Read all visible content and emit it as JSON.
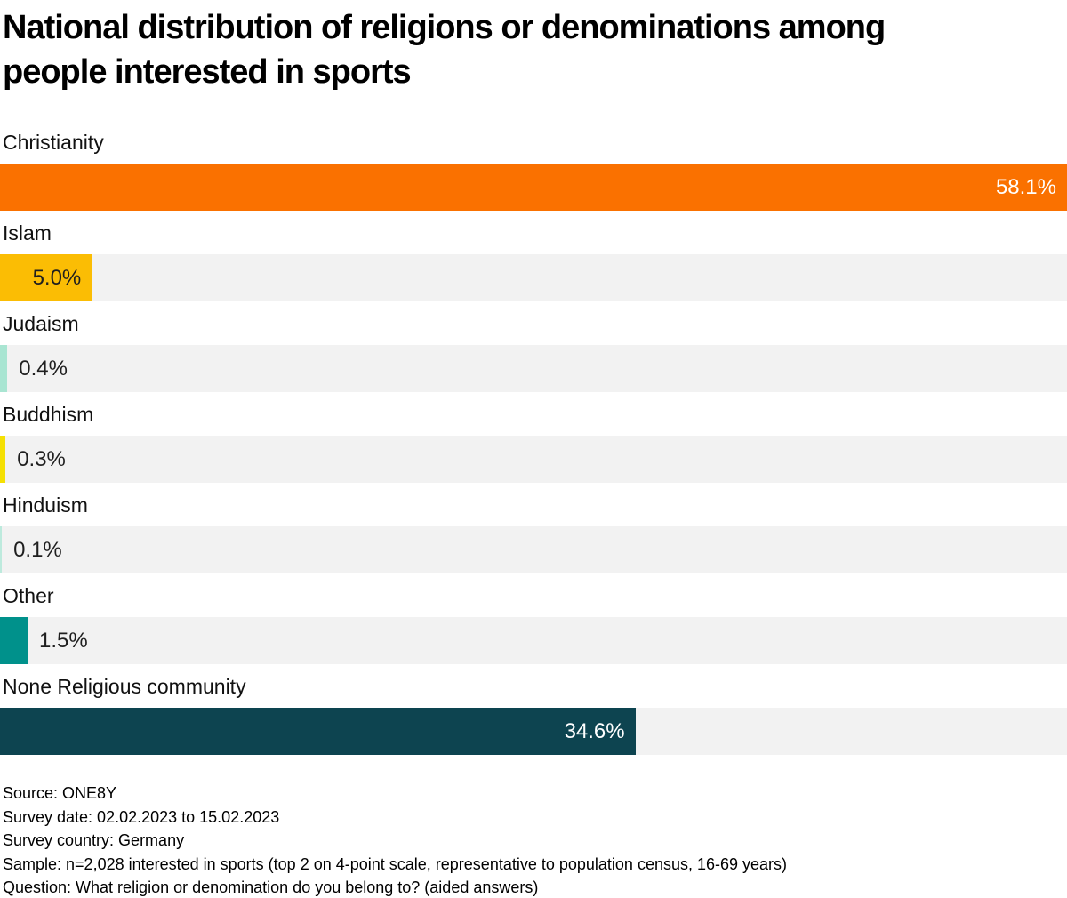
{
  "title_lines": [
    "National distribution of religions or denominations among",
    "people interested in sports"
  ],
  "chart_data": {
    "type": "bar",
    "orientation": "horizontal",
    "title": "National distribution of religions or denominations among people interested in sports",
    "categories": [
      "Christianity",
      "Islam",
      "Judaism",
      "Buddhism",
      "Hinduism",
      "Other",
      "None Religious community"
    ],
    "values": [
      58.1,
      5.0,
      0.4,
      0.3,
      0.1,
      1.5,
      34.6
    ],
    "value_labels": [
      "58.1%",
      "5.0%",
      "0.4%",
      "0.3%",
      "0.1%",
      "1.5%",
      "34.6%"
    ],
    "bar_colors": [
      "#FA7100",
      "#FBBD04",
      "#A9E5D2",
      "#F5E003",
      "#BDEADD",
      "#00918B",
      "#0D4450"
    ],
    "value_label_placement": [
      "inside-right",
      "inside-right",
      "outside",
      "outside",
      "outside",
      "outside",
      "inside-right"
    ],
    "value_label_colors": [
      "#ffffff",
      "#1f1f1f",
      "#1f1f1f",
      "#1f1f1f",
      "#1f1f1f",
      "#1f1f1f",
      "#ffffff"
    ],
    "xlim": [
      0,
      58.1
    ],
    "track_color": "#F2F2F2",
    "grid": false,
    "legend": false
  },
  "footer": {
    "lines": [
      "Source: ONE8Y",
      "Survey date: 02.02.2023 to 15.02.2023",
      "Survey country: Germany",
      "Sample: n=2,028 interested in sports (top 2 on 4-point scale, representative to population census, 16-69 years)",
      "Question: What religion or denomination do you belong to? (aided answers)"
    ]
  }
}
